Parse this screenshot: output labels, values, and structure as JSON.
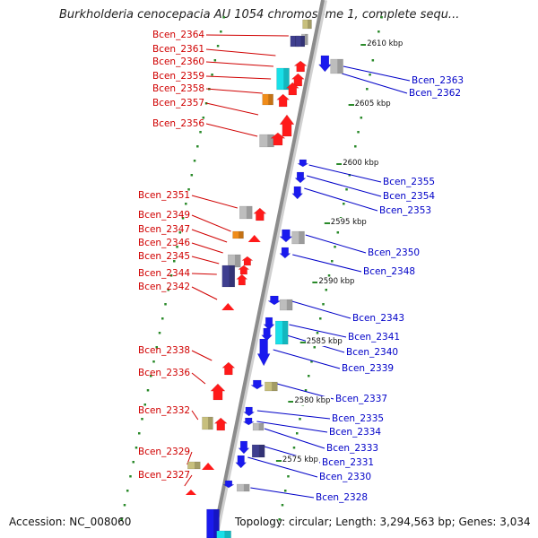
{
  "title": "Burkholderia cenocepacia AU 1054 chromosome 1, complete sequ...",
  "accession": "Accession: NC_008060",
  "topology": "Topology: circular; Length: 3,294,563 bp; Genes: 3,034",
  "colors": {
    "forward_label": "#d00000",
    "reverse_label": "#0000c8",
    "backbone": "#8c8c8c",
    "tick_dots": "#2a8a2a",
    "red_gene": "#ff1a1a",
    "blue_gene": "#1a1aee",
    "grey_gene": "#bdbdbd",
    "cyan_gene": "#19e0e8",
    "orange_gene": "#f08c1a",
    "olive_gene": "#c7bf7d",
    "navy_gene": "#3f3f8f"
  },
  "ticks": [
    "2610 kbp",
    "2605 kbp",
    "2600 kbp",
    "2595 kbp",
    "2590 kbp",
    "2585 kbp",
    "2580 kbp",
    "2575 kbp"
  ],
  "forward_genes": [
    "Bcen_2364",
    "Bcen_2361",
    "Bcen_2360",
    "Bcen_2359",
    "Bcen_2358",
    "Bcen_2357",
    "Bcen_2356",
    "Bcen_2351",
    "Bcen_2349",
    "Bcen_2347",
    "Bcen_2346",
    "Bcen_2345",
    "Bcen_2344",
    "Bcen_2342",
    "Bcen_2338",
    "Bcen_2336",
    "Bcen_2332",
    "Bcen_2329",
    "Bcen_2327"
  ],
  "reverse_genes": [
    "Bcen_2363",
    "Bcen_2362",
    "Bcen_2355",
    "Bcen_2354",
    "Bcen_2353",
    "Bcen_2350",
    "Bcen_2348",
    "Bcen_2343",
    "Bcen_2341",
    "Bcen_2340",
    "Bcen_2339",
    "Bcen_2337",
    "Bcen_2335",
    "Bcen_2334",
    "Bcen_2333",
    "Bcen_2331",
    "Bcen_2330",
    "Bcen_2328"
  ]
}
